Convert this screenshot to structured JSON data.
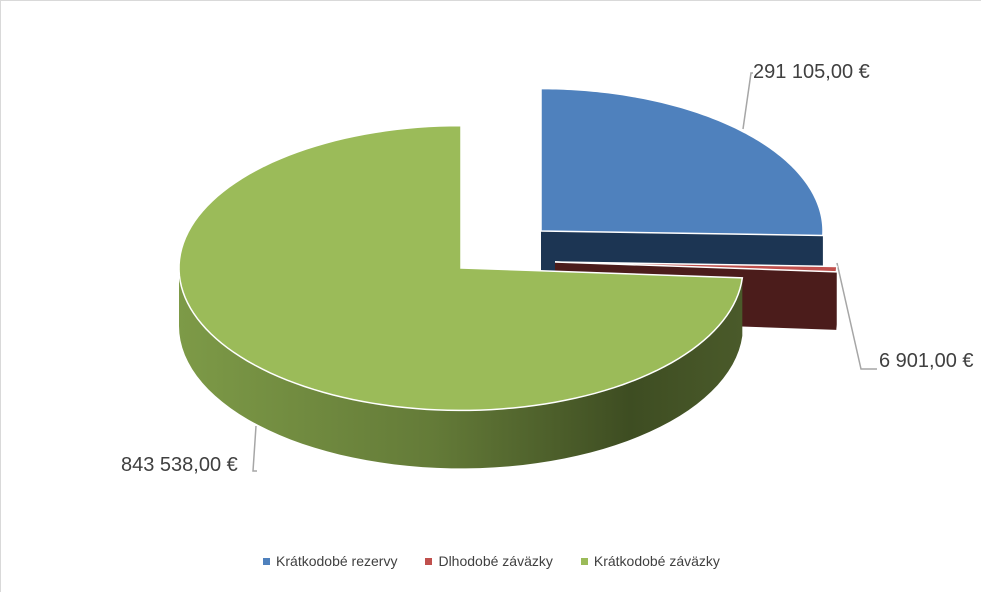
{
  "chart_data": {
    "type": "pie",
    "title": "",
    "legend_position": "bottom",
    "series": [
      {
        "categories": [
          "Krátkodobé rezervy",
          "Dlhodobé záväzky",
          "Krátkodobé záväzky"
        ],
        "values": [
          291105.0,
          6901.0,
          843538.0
        ],
        "labels": [
          "291 105,00 €",
          "6 901,00 €",
          "843 538,00 €"
        ],
        "colors": [
          "#4F81BD",
          "#C0504D",
          "#9BBB59"
        ]
      }
    ]
  }
}
